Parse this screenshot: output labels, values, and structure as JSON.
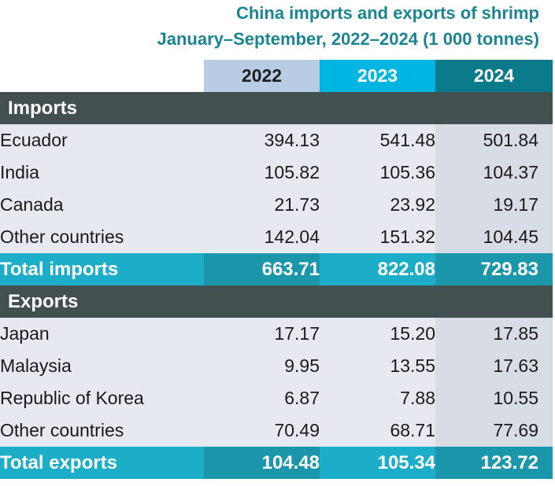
{
  "title_line1": "China imports and exports of shrimp",
  "title_line2": "January–September, 2022–2024 (1 000 tonnes)",
  "chart_data": {
    "type": "table",
    "title": "China imports and exports of shrimp",
    "subtitle": "January–September, 2022–2024 (1 000 tonnes)",
    "columns": [
      "2022",
      "2023",
      "2024"
    ],
    "sections": [
      {
        "name": "Imports",
        "rows": [
          {
            "label": "Ecuador",
            "values": [
              "394.13",
              "541.48",
              "501.84"
            ]
          },
          {
            "label": "India",
            "values": [
              "105.82",
              "105.36",
              "104.37"
            ]
          },
          {
            "label": "Canada",
            "values": [
              "21.73",
              "23.92",
              "19.17"
            ]
          },
          {
            "label": "Other countries",
            "values": [
              "142.04",
              "151.32",
              "104.45"
            ]
          }
        ],
        "total": {
          "label": "Total imports",
          "values": [
            "663.71",
            "822.08",
            "729.83"
          ]
        }
      },
      {
        "name": "Exports",
        "rows": [
          {
            "label": "Japan",
            "values": [
              "17.17",
              "15.20",
              "17.85"
            ]
          },
          {
            "label": "Malaysia",
            "values": [
              "9.95",
              "13.55",
              "17.63"
            ]
          },
          {
            "label": "Republic of Korea",
            "values": [
              "6.87",
              "7.88",
              "10.55"
            ]
          },
          {
            "label": "Other countries",
            "values": [
              "70.49",
              "68.71",
              "77.69"
            ]
          }
        ],
        "total": {
          "label": "Total exports",
          "values": [
            "104.48",
            "105.34",
            "123.72"
          ]
        }
      }
    ]
  }
}
